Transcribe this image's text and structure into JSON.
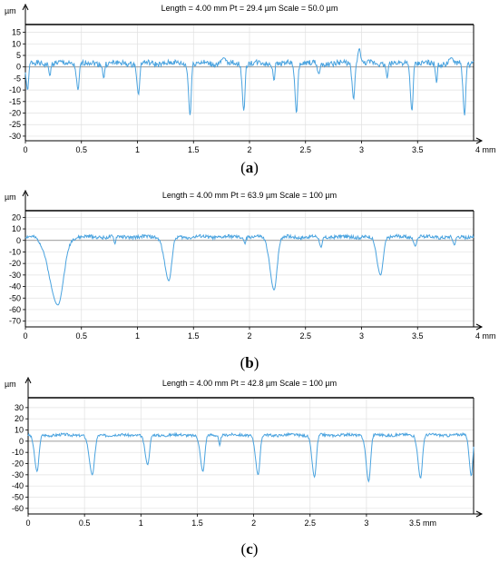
{
  "chart_data": [
    {
      "type": "line",
      "panel_label": "a",
      "header": "Length = 4.00 mm  Pt = 29.4 µm  Scale = 50.0 µm",
      "y_unit": "µm",
      "x_unit_label": "4 mm",
      "xlim": [
        0,
        4
      ],
      "ylim": [
        -32,
        18
      ],
      "x_ticks": [
        "0",
        "0.5",
        "1",
        "1.5",
        "2",
        "2.5",
        "3",
        "3.5"
      ],
      "x_tick_values": [
        0,
        0.5,
        1,
        1.5,
        2,
        2.5,
        3,
        3.5
      ],
      "y_ticks": [
        15,
        10,
        5,
        0,
        -5,
        -10,
        -15,
        -20,
        -25,
        -30
      ],
      "color": "#4aa3df",
      "baseline": 1.5,
      "noise_amplitude": 1.2,
      "valleys": [
        {
          "x": 0.02,
          "depth": -10,
          "width": 0.03
        },
        {
          "x": 0.22,
          "depth": -4,
          "width": 0.02
        },
        {
          "x": 0.47,
          "depth": -10,
          "width": 0.03
        },
        {
          "x": 0.7,
          "depth": -5,
          "width": 0.02
        },
        {
          "x": 1.01,
          "depth": -12,
          "width": 0.03
        },
        {
          "x": 1.47,
          "depth": -21,
          "width": 0.03
        },
        {
          "x": 1.95,
          "depth": -19,
          "width": 0.03
        },
        {
          "x": 2.22,
          "depth": -6,
          "width": 0.02
        },
        {
          "x": 2.42,
          "depth": -20,
          "width": 0.03
        },
        {
          "x": 2.62,
          "depth": -3,
          "width": 0.03
        },
        {
          "x": 2.93,
          "depth": -14,
          "width": 0.03
        },
        {
          "x": 3.23,
          "depth": -5,
          "width": 0.02
        },
        {
          "x": 3.45,
          "depth": -19,
          "width": 0.03
        },
        {
          "x": 3.67,
          "depth": -7,
          "width": 0.02
        },
        {
          "x": 3.92,
          "depth": -21,
          "width": 0.03
        }
      ],
      "peaks": [
        {
          "x": 2.98,
          "height": 8,
          "width": 0.03
        },
        {
          "x": 1.77,
          "height": 4,
          "width": 0.04
        },
        {
          "x": 3.8,
          "height": 4,
          "width": 0.04
        }
      ]
    },
    {
      "type": "line",
      "panel_label": "b",
      "header": "Length = 4.00 mm  Pt = 63.9 µm  Scale = 100 µm",
      "y_unit": "µm",
      "x_unit_label": "4 mm",
      "xlim": [
        0,
        4
      ],
      "ylim": [
        -75,
        25
      ],
      "x_ticks": [
        "0",
        "0.5",
        "1",
        "1.5",
        "2",
        "2.5",
        "3",
        "3.5"
      ],
      "x_tick_values": [
        0,
        0.5,
        1,
        1.5,
        2,
        2.5,
        3,
        3.5
      ],
      "y_ticks": [
        20,
        10,
        0,
        -10,
        -20,
        -30,
        -40,
        -50,
        -60,
        -70
      ],
      "color": "#4aa3df",
      "baseline": 3,
      "noise_amplitude": 1.5,
      "valleys": [
        {
          "x": 0.29,
          "depth": -56,
          "width": 0.16
        },
        {
          "x": 0.8,
          "depth": -3,
          "width": 0.02
        },
        {
          "x": 1.28,
          "depth": -35,
          "width": 0.08
        },
        {
          "x": 1.96,
          "depth": -3,
          "width": 0.02
        },
        {
          "x": 2.22,
          "depth": -43,
          "width": 0.08
        },
        {
          "x": 2.64,
          "depth": -6,
          "width": 0.03
        },
        {
          "x": 3.17,
          "depth": -30,
          "width": 0.07
        },
        {
          "x": 3.48,
          "depth": -5,
          "width": 0.03
        },
        {
          "x": 3.83,
          "depth": -4,
          "width": 0.03
        }
      ],
      "peaks": []
    },
    {
      "type": "line",
      "panel_label": "c",
      "header": "Length = 4.00 mm  Pt = 42.8 µm  Scale = 100 µm",
      "y_unit": "µm",
      "x_unit_label": "3.5 mm",
      "xlim": [
        0,
        3.95
      ],
      "ylim": [
        -65,
        38
      ],
      "x_ticks": [
        "0",
        "0.5",
        "1",
        "1.5",
        "2",
        "2.5",
        "3"
      ],
      "x_tick_values": [
        0,
        0.5,
        1,
        1.5,
        2,
        2.5,
        3
      ],
      "y_ticks": [
        30,
        20,
        10,
        0,
        -10,
        -20,
        -30,
        -40,
        -50,
        -60
      ],
      "color": "#4aa3df",
      "baseline": 5.5,
      "noise_amplitude": 1.2,
      "valleys": [
        {
          "x": 0.08,
          "depth": -27,
          "width": 0.05
        },
        {
          "x": 0.57,
          "depth": -30,
          "width": 0.06
        },
        {
          "x": 1.06,
          "depth": -21,
          "width": 0.05
        },
        {
          "x": 1.55,
          "depth": -27,
          "width": 0.05
        },
        {
          "x": 1.7,
          "depth": -4,
          "width": 0.02
        },
        {
          "x": 2.04,
          "depth": -30,
          "width": 0.05
        },
        {
          "x": 2.54,
          "depth": -32,
          "width": 0.05
        },
        {
          "x": 3.02,
          "depth": -36,
          "width": 0.05
        },
        {
          "x": 3.48,
          "depth": -33,
          "width": 0.05
        },
        {
          "x": 3.93,
          "depth": -31,
          "width": 0.04
        }
      ],
      "peaks": []
    }
  ]
}
